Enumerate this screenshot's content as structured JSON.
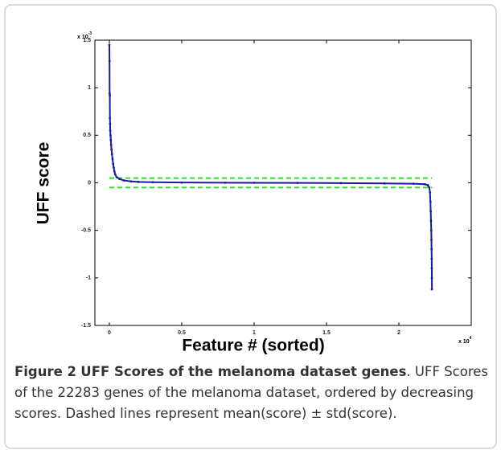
{
  "chart_data": {
    "type": "scatter",
    "ylabel": "UFF score",
    "xlabel": "Feature # (sorted)",
    "y_multiplier": {
      "base": "x 10",
      "exponent": "-3"
    },
    "x_multiplier": {
      "base": "x 10",
      "exponent": "4"
    },
    "xlim": [
      -0.1,
      2.5
    ],
    "ylim": [
      -1.5,
      1.5
    ],
    "xticks": [
      0,
      0.5,
      1,
      1.5,
      2
    ],
    "yticks": [
      -1.5,
      -1,
      -0.5,
      0,
      0.5,
      1,
      1.5
    ],
    "grid": false,
    "hlines": [
      0.05,
      -0.05
    ],
    "hline_color": "#33dd33",
    "series": [
      {
        "color": "#1a1aa0",
        "x": [
          0,
          0.001,
          0.002,
          0.003,
          0.004,
          0.005,
          0.006,
          0.008,
          0.01,
          0.012,
          0.015,
          0.018,
          0.022,
          0.026,
          0.03,
          0.035,
          0.04,
          0.05,
          0.07,
          0.1,
          0.15,
          0.2,
          0.3,
          0.5,
          0.8,
          1.0,
          1.3,
          1.6,
          1.9,
          2.1,
          2.18,
          2.2,
          2.21,
          2.215,
          2.218,
          2.22,
          2.222,
          2.224,
          2.225,
          2.226,
          2.227,
          2.2275,
          2.228,
          2.2283
        ],
        "values": [
          1.45,
          1.28,
          0.94,
          0.92,
          0.68,
          0.62,
          0.55,
          0.5,
          0.45,
          0.4,
          0.35,
          0.3,
          0.25,
          0.2,
          0.16,
          0.12,
          0.09,
          0.06,
          0.04,
          0.025,
          0.015,
          0.01,
          0.006,
          0.003,
          0.001,
          0,
          -0.001,
          -0.003,
          -0.006,
          -0.01,
          -0.015,
          -0.025,
          -0.05,
          -0.1,
          -0.2,
          -0.3,
          -0.4,
          -0.5,
          -0.6,
          -0.7,
          -0.8,
          -0.9,
          -1.0,
          -1.12
        ]
      }
    ]
  },
  "caption": {
    "label": "Figure 2",
    "title": "UFF Scores of the melanoma dataset genes",
    "text": ". UFF Scores of the 22283 genes of the melanoma dataset, ordered by decreasing scores. Dashed lines represent mean(score) ± std(score)."
  }
}
